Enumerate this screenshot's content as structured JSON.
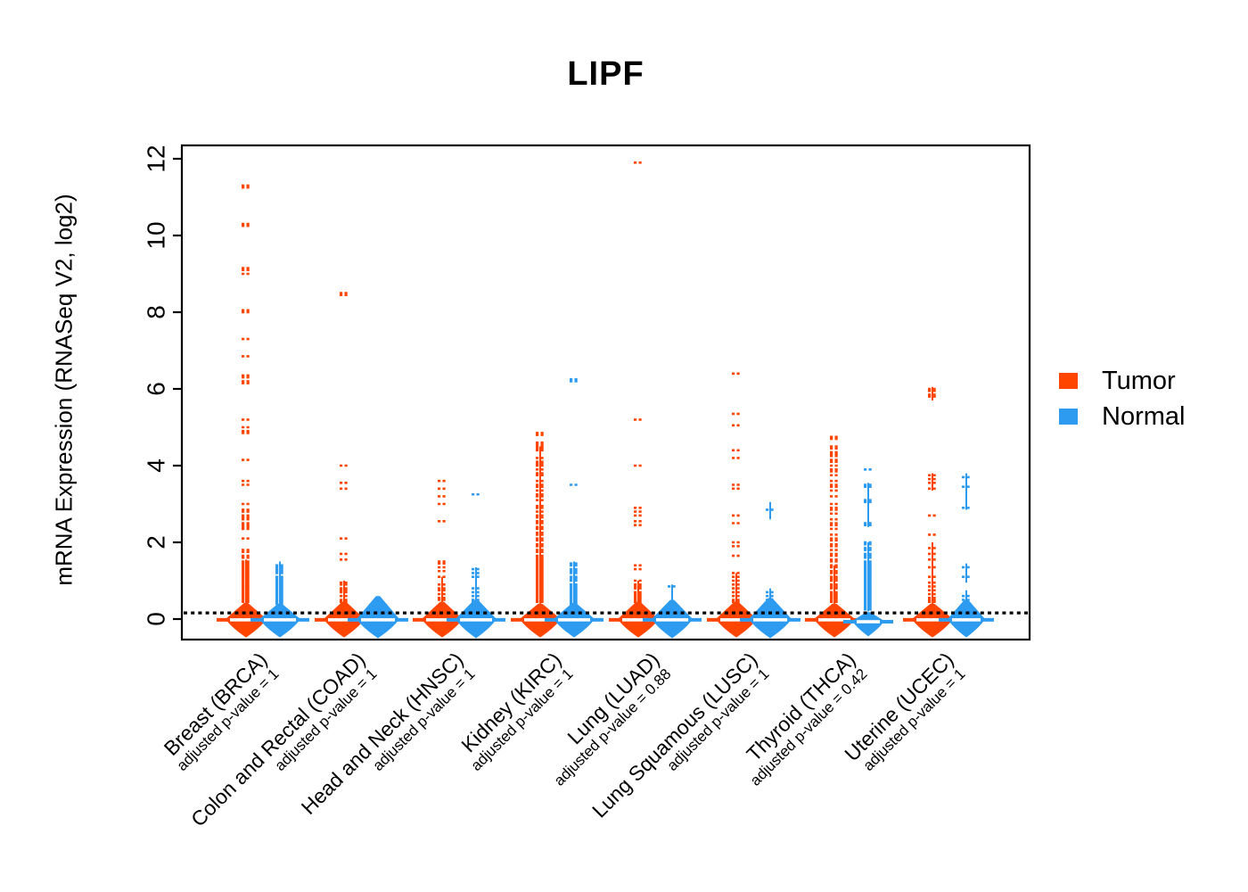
{
  "legend": {
    "items": [
      {
        "label": "Tumor",
        "color": "#FF4500"
      },
      {
        "label": "Normal",
        "color": "#2D9BF0"
      }
    ]
  },
  "chart_data": {
    "type": "scatter",
    "variant": "beanplot / violin strip chart of mRNA expression, tumor vs normal per cancer type",
    "title": "LIPF",
    "xlabel": "",
    "ylabel": "mRNA Expression (RNASeq V2, log2)",
    "yticks": [
      0,
      2,
      4,
      6,
      8,
      10,
      12
    ],
    "ylim": [
      -0.6,
      12.4
    ],
    "grid": false,
    "legend_position": "right",
    "threshold_line": 0.16,
    "series_colors": {
      "tumor": "#FF4500",
      "normal": "#2D9BF0"
    },
    "groups": [
      {
        "label": "Breast (BRCA)",
        "p_label": "adjusted p-value = 1",
        "tumor": {
          "violin": {
            "bottom": -0.48,
            "peak": 0.0,
            "top": 0.42,
            "halfwidth": 23
          },
          "median": -0.02,
          "stems": [
            [
              0.4,
              1.55
            ]
          ],
          "outliers": [
            11.3,
            11.25,
            10.3,
            10.25,
            9.15,
            9.1,
            9.0,
            8.05,
            8.0,
            7.3,
            6.85,
            6.35,
            6.3,
            6.2,
            6.15,
            5.2,
            5.0,
            4.9,
            4.85,
            4.15,
            3.6,
            3.5,
            3.0,
            2.85,
            2.8,
            2.7,
            2.65,
            2.6,
            2.5,
            2.45,
            2.4,
            2.35,
            2.1,
            1.8,
            1.75,
            1.65,
            1.6,
            1.5,
            1.45,
            1.4,
            1.35,
            1.3,
            1.25,
            1.2,
            1.15,
            1.1,
            1.05,
            1.0,
            0.95,
            0.9,
            0.85,
            0.8,
            0.75,
            0.7,
            0.65,
            0.6,
            0.55,
            0.5,
            0.45
          ]
        },
        "normal": {
          "violin": {
            "bottom": -0.48,
            "peak": 0.0,
            "top": 0.4,
            "halfwidth": 23
          },
          "median": -0.02,
          "stems": [
            [
              0.35,
              1.5
            ]
          ],
          "outliers": [
            1.4,
            1.35,
            1.3,
            1.25,
            1.2,
            1.1,
            1.05,
            1.0,
            0.95,
            0.9,
            0.85,
            0.8,
            0.75,
            0.7,
            0.65,
            0.6,
            0.55,
            0.5,
            0.45,
            0.4
          ]
        }
      },
      {
        "label": "Colon and Rectal (COAD)",
        "p_label": "adjusted p-value = 1",
        "tumor": {
          "violin": {
            "bottom": -0.48,
            "peak": 0.0,
            "top": 0.45,
            "halfwidth": 23
          },
          "median": -0.02,
          "stems": [
            [
              0.4,
              1.0
            ]
          ],
          "outliers": [
            8.5,
            8.45,
            4.0,
            3.55,
            3.4,
            2.1,
            1.7,
            1.55,
            0.95,
            0.9,
            0.8,
            0.75,
            0.7,
            0.6,
            0.5,
            0.45
          ]
        },
        "normal": {
          "violin": {
            "bottom": -0.5,
            "peak": 0.0,
            "top": 0.6,
            "halfwidth": 24
          },
          "median": -0.02,
          "stems": [],
          "outliers": []
        }
      },
      {
        "label": "Head and Neck (HNSC)",
        "p_label": "adjusted p-value = 1",
        "tumor": {
          "violin": {
            "bottom": -0.48,
            "peak": 0.0,
            "top": 0.45,
            "halfwidth": 23
          },
          "median": -0.02,
          "stems": [
            [
              0.4,
              1.1
            ]
          ],
          "outliers": [
            3.6,
            3.4,
            3.2,
            3.0,
            2.55,
            1.5,
            1.45,
            1.35,
            1.25,
            1.1,
            0.9,
            0.8,
            0.75,
            0.65,
            0.55,
            0.5
          ]
        },
        "normal": {
          "violin": {
            "bottom": -0.5,
            "peak": 0.0,
            "top": 0.5,
            "halfwidth": 23
          },
          "median": -0.02,
          "stems": [
            [
              0.35,
              1.35
            ]
          ],
          "outliers": [
            3.25,
            1.3,
            1.2,
            1.1,
            0.8,
            0.7,
            0.6,
            0.5,
            0.45
          ]
        }
      },
      {
        "label": "Kidney (KIRC)",
        "p_label": "adjusted p-value = 1",
        "tumor": {
          "violin": {
            "bottom": -0.48,
            "peak": 0.0,
            "top": 0.4,
            "halfwidth": 23
          },
          "median": -0.02,
          "stems": [
            [
              0.4,
              4.5
            ]
          ],
          "outliers": [
            4.85,
            4.8,
            4.6,
            4.55,
            4.5,
            4.45,
            4.4,
            4.2,
            4.1,
            4.05,
            4.0,
            3.9,
            3.8,
            3.75,
            3.6,
            3.5,
            3.45,
            3.35,
            3.25,
            3.2,
            3.1,
            2.95,
            2.9,
            2.8,
            2.7,
            2.65,
            2.55,
            2.5,
            2.4,
            2.35,
            2.25,
            2.2,
            2.1,
            2.05,
            1.95,
            1.9,
            1.8,
            1.75,
            1.65,
            1.6,
            1.55,
            1.5,
            1.45,
            1.4,
            1.35,
            1.3,
            1.25,
            1.2,
            1.15,
            1.1,
            1.05,
            1.0,
            0.95,
            0.9,
            0.85,
            0.8,
            0.75,
            0.7,
            0.65,
            0.6,
            0.55,
            0.5,
            0.45
          ]
        },
        "normal": {
          "violin": {
            "bottom": -0.48,
            "peak": 0.0,
            "top": 0.42,
            "halfwidth": 23
          },
          "median": -0.02,
          "stems": [
            [
              0.35,
              1.5
            ]
          ],
          "outliers": [
            6.25,
            6.2,
            3.5,
            1.45,
            1.4,
            1.3,
            1.25,
            1.2,
            1.1,
            1.05,
            1.0,
            0.9,
            0.85,
            0.8,
            0.75,
            0.7,
            0.65,
            0.6,
            0.55,
            0.5,
            0.45,
            0.4
          ]
        }
      },
      {
        "label": "Lung (LUAD)",
        "p_label": "adjusted p-value = 0.88",
        "tumor": {
          "violin": {
            "bottom": -0.48,
            "peak": 0.0,
            "top": 0.45,
            "halfwidth": 23
          },
          "median": -0.02,
          "stems": [
            [
              0.4,
              1.0
            ]
          ],
          "outliers": [
            11.9,
            5.2,
            4.0,
            2.9,
            2.8,
            2.7,
            2.55,
            2.45,
            1.4,
            1.3,
            1.0,
            0.9,
            0.85,
            0.8,
            0.7,
            0.65,
            0.6,
            0.55,
            0.5,
            0.45
          ]
        },
        "normal": {
          "violin": {
            "bottom": -0.5,
            "peak": 0.0,
            "top": 0.5,
            "halfwidth": 23
          },
          "median": -0.02,
          "stems": [
            [
              0.35,
              0.9
            ]
          ],
          "outliers": [
            0.85
          ]
        }
      },
      {
        "label": "Lung Squamous (LUSC)",
        "p_label": "adjusted p-value = 1",
        "tumor": {
          "violin": {
            "bottom": -0.48,
            "peak": 0.0,
            "top": 0.45,
            "halfwidth": 23
          },
          "median": -0.02,
          "stems": [
            [
              0.4,
              1.2
            ]
          ],
          "outliers": [
            6.4,
            5.35,
            5.05,
            4.4,
            4.2,
            3.5,
            3.4,
            2.7,
            2.5,
            2.0,
            1.9,
            1.65,
            1.2,
            1.1,
            1.0,
            0.9,
            0.8,
            0.7,
            0.6,
            0.5,
            0.45
          ]
        },
        "normal": {
          "violin": {
            "bottom": -0.5,
            "peak": 0.0,
            "top": 0.55,
            "halfwidth": 24
          },
          "median": -0.02,
          "stems": [
            [
              0.35,
              0.8
            ],
            [
              2.6,
              3.05
            ]
          ],
          "outliers": [
            2.85,
            0.7,
            0.6,
            0.5
          ]
        }
      },
      {
        "label": "Thyroid (THCA)",
        "p_label": "adjusted p-value = 0.42",
        "tumor": {
          "violin": {
            "bottom": -0.48,
            "peak": 0.0,
            "top": 0.4,
            "halfwidth": 23
          },
          "median": -0.02,
          "stems": [
            [
              0.4,
              1.4
            ]
          ],
          "outliers": [
            4.75,
            4.7,
            4.5,
            4.45,
            4.35,
            4.3,
            4.25,
            4.15,
            4.1,
            4.0,
            3.9,
            3.85,
            3.75,
            3.6,
            3.5,
            3.45,
            3.35,
            3.2,
            3.0,
            2.9,
            2.85,
            2.75,
            2.6,
            2.5,
            2.45,
            2.35,
            2.2,
            2.1,
            2.05,
            1.95,
            1.9,
            1.8,
            1.7,
            1.65,
            1.55,
            1.5,
            1.4,
            1.35,
            1.25,
            1.2,
            1.1,
            1.05,
            1.0,
            0.9,
            0.85,
            0.8,
            0.7,
            0.65,
            0.6,
            0.55,
            0.5,
            0.45
          ]
        },
        "normal": {
          "violin": {
            "bottom": -0.45,
            "peak": -0.05,
            "top": 0.18,
            "halfwidth": 18
          },
          "median": -0.07,
          "stems": [
            [
              0.2,
              2.0
            ],
            [
              2.4,
              3.55
            ]
          ],
          "outliers": [
            3.9,
            3.5,
            3.45,
            3.1,
            3.05,
            2.5,
            2.45,
            2.0,
            1.95,
            1.85,
            1.8,
            1.7,
            1.65,
            1.6,
            1.5,
            1.45,
            1.4,
            1.35,
            1.3,
            1.25,
            1.2,
            1.15,
            1.1,
            1.05,
            1.0,
            0.95,
            0.9,
            0.85,
            0.8,
            0.75,
            0.7,
            0.65,
            0.6,
            0.55,
            0.5,
            0.45,
            0.4,
            0.35,
            0.3,
            0.25
          ]
        }
      },
      {
        "label": "Uterine (UCEC)",
        "p_label": "adjusted p-value = 1",
        "tumor": {
          "violin": {
            "bottom": -0.48,
            "peak": 0.0,
            "top": 0.4,
            "halfwidth": 23
          },
          "median": -0.02,
          "stems": [
            [
              0.4,
              2.0
            ],
            [
              5.7,
              6.05
            ],
            [
              3.35,
              3.8
            ]
          ],
          "outliers": [
            6.0,
            5.95,
            5.85,
            5.8,
            3.75,
            3.65,
            3.55,
            3.4,
            2.7,
            2.2,
            1.85,
            1.7,
            1.55,
            1.35,
            1.1,
            0.95,
            0.85,
            0.75,
            0.65,
            0.55,
            0.5,
            0.45
          ]
        },
        "normal": {
          "violin": {
            "bottom": -0.48,
            "peak": 0.0,
            "top": 0.5,
            "halfwidth": 21
          },
          "median": -0.02,
          "stems": [
            [
              0.35,
              0.75
            ],
            [
              2.85,
              3.8
            ],
            [
              0.95,
              1.45
            ]
          ],
          "outliers": [
            3.7,
            3.45,
            2.9,
            1.35,
            1.1,
            0.6,
            0.5
          ]
        }
      }
    ]
  }
}
